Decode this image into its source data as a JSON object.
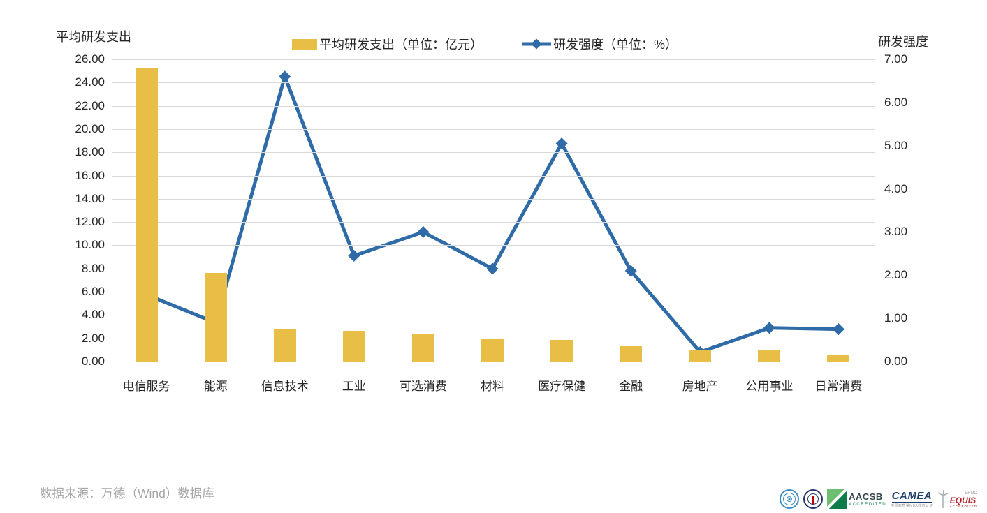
{
  "chart_data": {
    "type": "bar+line combo, dual y-axes",
    "categories": [
      "电信服务",
      "能源",
      "信息技术",
      "工业",
      "可选消费",
      "材料",
      "医疗保健",
      "金融",
      "房地产",
      "公用事业",
      "日常消费"
    ],
    "series": [
      {
        "name": "平均研发支出（单位：亿元）",
        "type": "bar",
        "axis": "left",
        "color": "#E8BE46",
        "values": [
          25.2,
          7.6,
          2.8,
          2.65,
          2.4,
          1.95,
          1.85,
          1.3,
          1.0,
          1.0,
          0.55
        ]
      },
      {
        "name": "研发强度（单位：%）",
        "type": "line",
        "axis": "right",
        "color": "#2E6BA7",
        "marker": "diamond",
        "values": [
          1.55,
          0.9,
          6.6,
          2.45,
          3.0,
          2.15,
          5.05,
          2.1,
          0.22,
          0.78,
          0.75
        ]
      }
    ],
    "left_axis": {
      "title": "平均研发支出",
      "min": 0,
      "max": 26,
      "step": 2,
      "tick_format": "0.00"
    },
    "right_axis": {
      "title": "研发强度",
      "min": 0,
      "max": 7,
      "step": 1,
      "tick_format": "0.00"
    },
    "grid": true,
    "legend_position": "top-center",
    "colors": {
      "grid": "#D9D9D9",
      "axis_line": "#BFBFBF",
      "tick_text": "#262626"
    }
  },
  "footer": {
    "source": "数据来源：万德（Wind）数据库",
    "logos": {
      "aacsb": {
        "name": "AACSB",
        "sub": "ACCREDITED"
      },
      "camea": {
        "name": "CAMEA",
        "sub": "中国高质量MBA教育认证"
      },
      "equis": {
        "name": "EQUIS",
        "efmd": "EFMD",
        "sub": "ACCREDITED"
      }
    }
  }
}
